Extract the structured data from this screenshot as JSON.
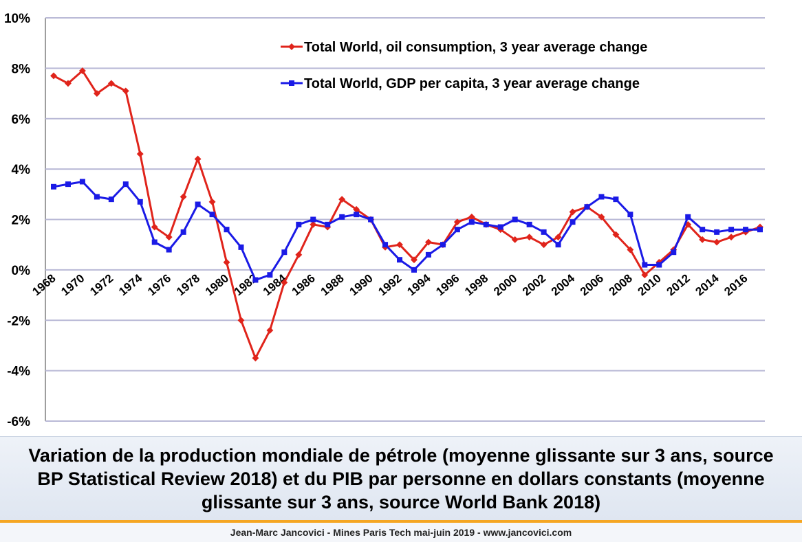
{
  "chart_data": {
    "type": "line",
    "ylim": [
      -6,
      10
    ],
    "y_ticks": [
      10,
      8,
      6,
      4,
      2,
      0,
      -2,
      -4,
      -6
    ],
    "y_tick_suffix": "%",
    "x_ticks": [
      1968,
      1970,
      1972,
      1974,
      1976,
      1978,
      1980,
      1982,
      1984,
      1986,
      1988,
      1990,
      1992,
      1994,
      1996,
      1998,
      2000,
      2002,
      2004,
      2006,
      2008,
      2010,
      2012,
      2014,
      2016
    ],
    "x_range": [
      1968,
      2017
    ],
    "grid": "horizontal",
    "legend_position": "top-center",
    "x": [
      1968,
      1969,
      1970,
      1971,
      1972,
      1973,
      1974,
      1975,
      1976,
      1977,
      1978,
      1979,
      1980,
      1981,
      1982,
      1983,
      1984,
      1985,
      1986,
      1987,
      1988,
      1989,
      1990,
      1991,
      1992,
      1993,
      1994,
      1995,
      1996,
      1997,
      1998,
      1999,
      2000,
      2001,
      2002,
      2003,
      2004,
      2005,
      2006,
      2007,
      2008,
      2009,
      2010,
      2011,
      2012,
      2013,
      2014,
      2015,
      2016,
      2017
    ],
    "series": [
      {
        "name": "Total World, oil consumption, 3 year average change",
        "color": "#e0241b",
        "marker": "diamond",
        "values": [
          7.7,
          7.4,
          7.9,
          7.0,
          7.4,
          7.1,
          4.6,
          1.7,
          1.3,
          2.9,
          4.4,
          2.7,
          0.3,
          -2.0,
          -3.5,
          -2.4,
          -0.5,
          0.6,
          1.8,
          1.7,
          2.8,
          2.4,
          2.0,
          0.9,
          1.0,
          0.4,
          1.1,
          1.0,
          1.9,
          2.1,
          1.8,
          1.6,
          1.2,
          1.3,
          1.0,
          1.3,
          2.3,
          2.5,
          2.1,
          1.4,
          0.8,
          -0.2,
          0.3,
          0.8,
          1.8,
          1.2,
          1.1,
          1.3,
          1.5,
          1.7
        ]
      },
      {
        "name": "Total World, GDP per capita, 3 year average change",
        "color": "#1a1ae6",
        "marker": "square",
        "values": [
          3.3,
          3.4,
          3.5,
          2.9,
          2.8,
          3.4,
          2.7,
          1.1,
          0.8,
          1.5,
          2.6,
          2.2,
          1.6,
          0.9,
          -0.4,
          -0.2,
          0.7,
          1.8,
          2.0,
          1.8,
          2.1,
          2.2,
          2.0,
          1.0,
          0.4,
          0.0,
          0.6,
          1.0,
          1.6,
          1.9,
          1.8,
          1.7,
          2.0,
          1.8,
          1.5,
          1.0,
          1.9,
          2.5,
          2.9,
          2.8,
          2.2,
          0.2,
          0.2,
          0.7,
          2.1,
          1.6,
          1.5,
          1.6,
          1.6,
          1.6
        ]
      }
    ]
  },
  "caption": {
    "text": "Variation de la production mondiale de pétrole (moyenne glissante sur 3 ans, source BP Statistical Review 2018) et du PIB par personne en dollars constants (moyenne glissante sur 3 ans, source World Bank 2018)"
  },
  "footer": {
    "text": "Jean-Marc Jancovici - Mines Paris Tech mai-juin 2019 - www.jancovici.com"
  },
  "colors": {
    "accent_orange": "#f5a623",
    "grid": "#b9b9d6",
    "axis": "#7f7f7f"
  }
}
